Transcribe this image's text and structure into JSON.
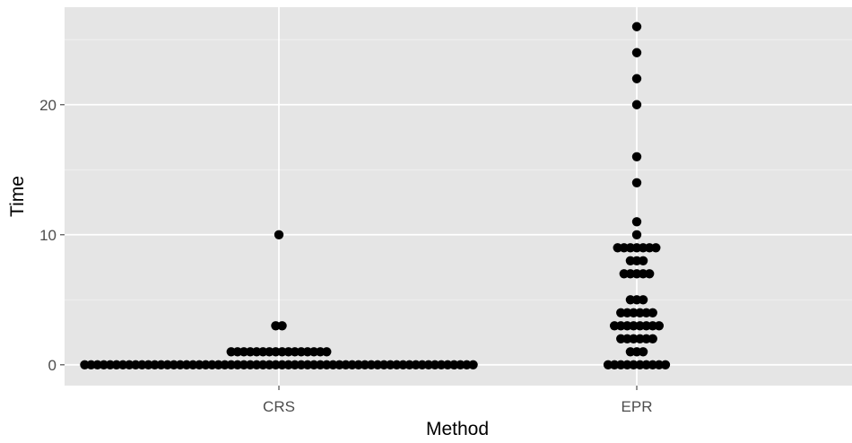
{
  "chart_data": {
    "type": "scatter",
    "subtype": "dot-plot",
    "title": "",
    "xlabel": "Method",
    "ylabel": "Time",
    "categories": [
      "CRS",
      "EPR"
    ],
    "ylim": [
      -1.6,
      27.5
    ],
    "yticks": [
      0,
      10,
      20
    ],
    "ytick_labels": [
      "0",
      "10",
      "20"
    ],
    "grid": true,
    "legend": "none",
    "colors": {
      "panel": "#e5e5e5",
      "grid": "#ffffff",
      "point": "#000000"
    },
    "series": [
      {
        "category": "CRS",
        "counts": [
          {
            "y": 0,
            "n": 62
          },
          {
            "y": 1,
            "n": 16
          },
          {
            "y": 3,
            "n": 2
          },
          {
            "y": 10,
            "n": 1
          }
        ]
      },
      {
        "category": "EPR",
        "counts": [
          {
            "y": 0,
            "n": 10
          },
          {
            "y": 1,
            "n": 3
          },
          {
            "y": 2,
            "n": 6
          },
          {
            "y": 3,
            "n": 8
          },
          {
            "y": 4,
            "n": 6
          },
          {
            "y": 5,
            "n": 3
          },
          {
            "y": 7,
            "n": 5
          },
          {
            "y": 8,
            "n": 3
          },
          {
            "y": 9,
            "n": 7
          },
          {
            "y": 10,
            "n": 1
          },
          {
            "y": 11,
            "n": 1
          },
          {
            "y": 14,
            "n": 1
          },
          {
            "y": 16,
            "n": 1
          },
          {
            "y": 20,
            "n": 1
          },
          {
            "y": 22,
            "n": 1
          },
          {
            "y": 24,
            "n": 1
          },
          {
            "y": 26,
            "n": 1
          }
        ]
      }
    ]
  }
}
